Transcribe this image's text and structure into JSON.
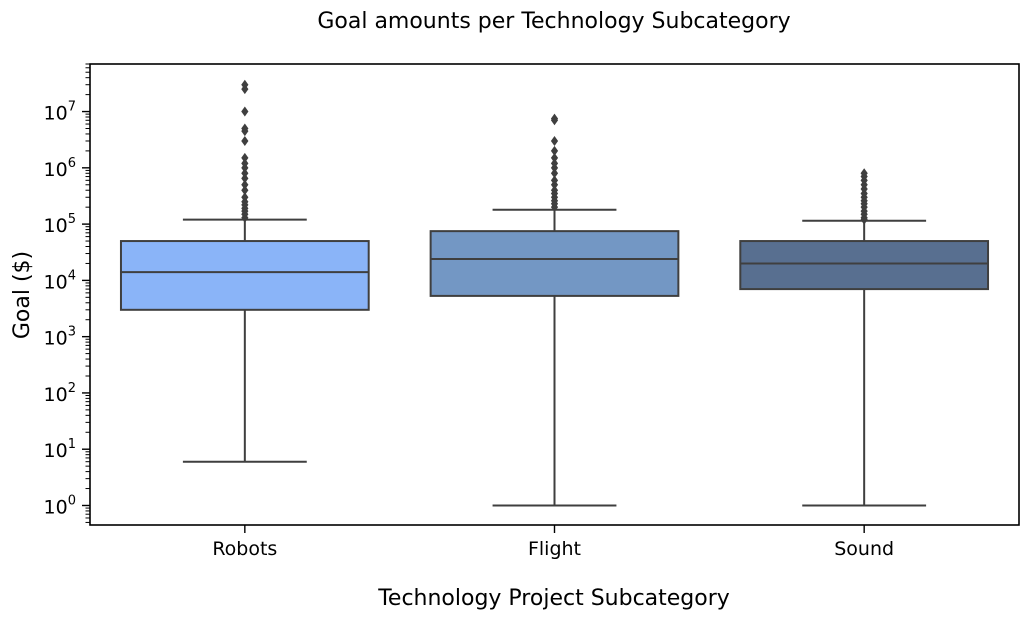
{
  "chart_data": {
    "type": "box",
    "title": "Goal amounts per Technology Subcategory",
    "xlabel": "Technology Project Subcategory",
    "ylabel": "Goal ($)",
    "yscale": "log",
    "ylim": [
      0.45,
      70000000
    ],
    "yticks": [
      {
        "value": 1,
        "base": "10",
        "exp": "0"
      },
      {
        "value": 10,
        "base": "10",
        "exp": "1"
      },
      {
        "value": 100,
        "base": "10",
        "exp": "2"
      },
      {
        "value": 1000,
        "base": "10",
        "exp": "3"
      },
      {
        "value": 10000,
        "base": "10",
        "exp": "4"
      },
      {
        "value": 100000,
        "base": "10",
        "exp": "5"
      },
      {
        "value": 1000000,
        "base": "10",
        "exp": "6"
      },
      {
        "value": 10000000,
        "base": "10",
        "exp": "7"
      }
    ],
    "grid": false,
    "categories": [
      "Robots",
      "Flight",
      "Sound"
    ],
    "boxes": [
      {
        "category": "Robots",
        "color": "#8ab4f8",
        "whisker_low": 6,
        "q1": 3000,
        "median": 14000,
        "q3": 50000,
        "whisker_high": 120000,
        "outliers": [
          130000,
          150000,
          170000,
          190000,
          220000,
          250000,
          300000,
          400000,
          500000,
          650000,
          800000,
          1000000,
          1200000,
          1500000,
          3000000,
          4500000,
          5000000,
          10000000,
          25000000,
          30000000
        ]
      },
      {
        "category": "Flight",
        "color": "#7397c4",
        "whisker_low": 1,
        "q1": 5300,
        "median": 24000,
        "q3": 75000,
        "whisker_high": 180000,
        "outliers": [
          200000,
          230000,
          260000,
          300000,
          350000,
          400000,
          500000,
          600000,
          800000,
          1000000,
          1200000,
          1500000,
          2000000,
          3000000,
          7000000,
          7500000
        ]
      },
      {
        "category": "Sound",
        "color": "#586f90",
        "whisker_low": 1,
        "q1": 7000,
        "median": 20000,
        "q3": 50000,
        "whisker_high": 115000,
        "outliers": [
          120000,
          130000,
          150000,
          170000,
          200000,
          230000,
          260000,
          300000,
          350000,
          420000,
          500000,
          600000,
          700000,
          800000
        ]
      }
    ]
  }
}
